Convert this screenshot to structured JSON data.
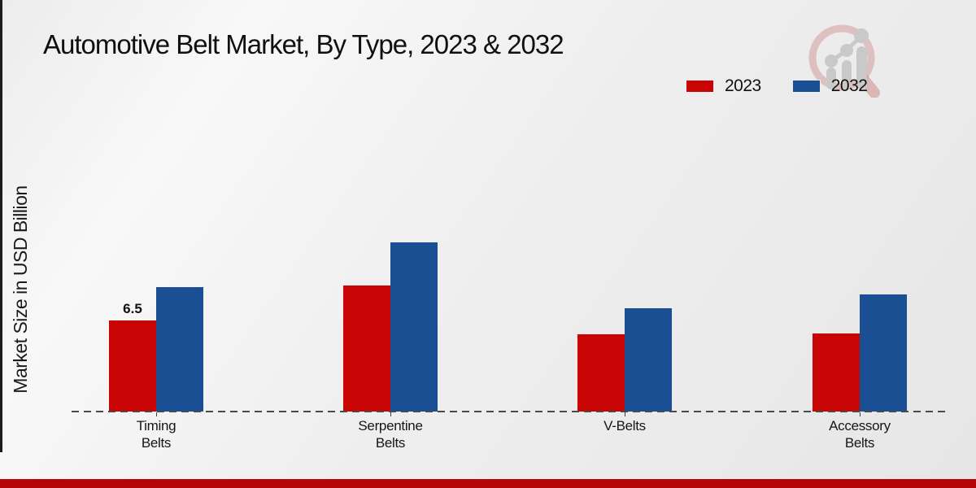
{
  "page": {
    "background_light": "#f8f8f8",
    "background_dark": "#e6e6e6",
    "left_edge_strip_color": "#1c1c1c",
    "footer_bar_color": "#b50505"
  },
  "branding": {
    "logo_name": "magnifier-bar-chart-watermark",
    "logo_ring_color": "rgba(188,88,88,0.30)",
    "logo_bar_color": "#c9c9c9"
  },
  "chart_data": {
    "type": "bar",
    "title": "Automotive Belt Market, By Type, 2023 & 2032",
    "xlabel": "",
    "ylabel": "Market Size in USD Billion",
    "categories": [
      "Timing Belts",
      "Serpentine Belts",
      "V-Belts",
      "Accessory Belts"
    ],
    "category_label_lines": [
      [
        "Timing",
        "Belts"
      ],
      [
        "Serpentine",
        "Belts"
      ],
      [
        "V-Belts"
      ],
      [
        "Accessory",
        "Belts"
      ]
    ],
    "series": [
      {
        "name": "2023",
        "color": "#c80404",
        "values": [
          6.5,
          9.0,
          5.5,
          5.6
        ]
      },
      {
        "name": "2032",
        "color": "#1a4f93",
        "values": [
          8.9,
          12.1,
          7.4,
          8.4
        ]
      }
    ],
    "annotations": [
      {
        "category_index": 0,
        "series_index": 0,
        "text": "6.5"
      }
    ],
    "ylim": [
      0,
      13
    ],
    "grid": false,
    "legend_position": "top-right",
    "axis_line_style": "dashed",
    "value_unit": "USD Billion"
  }
}
